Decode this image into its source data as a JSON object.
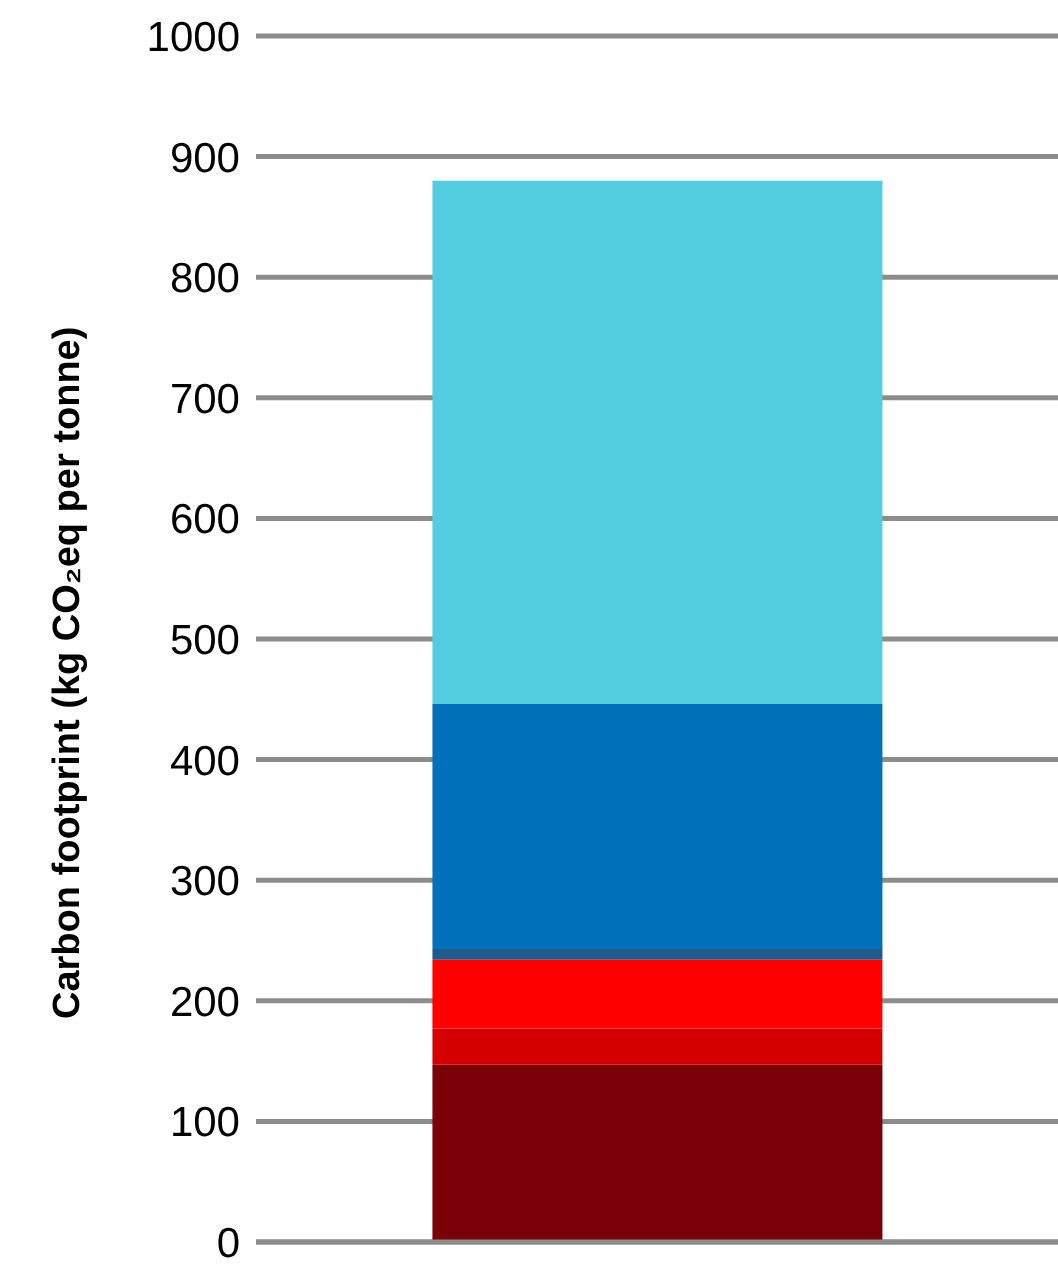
{
  "chart_data": {
    "type": "bar",
    "ylabel": "Carbon footprint (kg CO₂eq per tonne)",
    "categories": [
      null
    ],
    "stacked": true,
    "series": [
      {
        "color": "#7a0008",
        "values": [
          147
        ]
      },
      {
        "color": "#d40000",
        "values": [
          30
        ]
      },
      {
        "color": "#ff0000",
        "values": [
          57
        ]
      },
      {
        "color": "#1f5a8c",
        "values": [
          9
        ]
      },
      {
        "color": "#0070ba",
        "values": [
          203
        ]
      },
      {
        "color": "#52cde0",
        "values": [
          434
        ]
      }
    ],
    "ylim": [
      0,
      1000
    ],
    "yticks": [
      0,
      100,
      200,
      300,
      400,
      500,
      600,
      700,
      800,
      900,
      1000
    ],
    "grid": "y",
    "legend": false
  }
}
